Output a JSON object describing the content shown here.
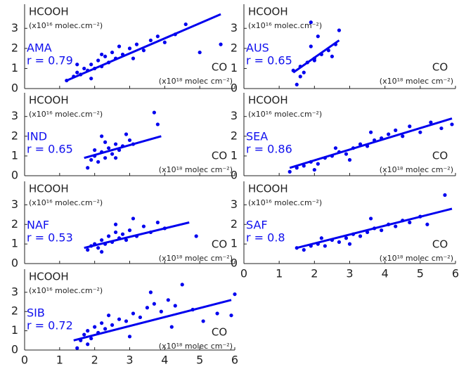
{
  "chart_data": [
    {
      "type": "scatter",
      "y_label": "HCOOH",
      "y_unit": "(x10¹⁶ molec.cm⁻²)",
      "x_label": "CO",
      "x_unit": "(x10¹⁸ molec cm⁻²)",
      "region": "AMA",
      "r_label": "r = 0.79",
      "color": "#0000ee",
      "xlim": [
        0,
        6
      ],
      "ylim": [
        0,
        4.2
      ],
      "yticks": [
        0,
        1,
        2,
        3
      ],
      "xticks": [
        0,
        1,
        2,
        3,
        4,
        5,
        6
      ],
      "xtick_labels": false,
      "x": [
        1.2,
        1.4,
        1.5,
        1.6,
        1.7,
        1.8,
        1.9,
        2.0,
        2.1,
        2.2,
        2.3,
        2.4,
        2.5,
        2.6,
        2.8,
        3.0,
        3.2,
        3.4,
        3.6,
        3.8,
        4.0,
        4.3,
        4.6,
        5.0,
        5.6,
        1.5,
        1.9,
        2.2,
        2.7,
        3.1
      ],
      "y": [
        0.4,
        0.6,
        0.8,
        0.7,
        1.0,
        0.9,
        1.2,
        1.0,
        1.4,
        1.1,
        1.6,
        1.3,
        1.8,
        1.5,
        1.7,
        2.0,
        2.2,
        1.9,
        2.4,
        2.6,
        2.3,
        2.7,
        3.2,
        1.8,
        2.2,
        1.2,
        0.5,
        1.7,
        2.1,
        1.5
      ],
      "fit_x": [
        1.2,
        5.6
      ],
      "fit_y": [
        0.4,
        3.7
      ]
    },
    {
      "type": "scatter",
      "y_label": "HCOOH",
      "y_unit": "(x10¹⁶ molec.cm⁻²)",
      "x_label": "CO",
      "x_unit": "(x10¹⁸ molec cm⁻²)",
      "region": "AUS",
      "r_label": "r = 0.65",
      "color": "#0000ee",
      "xlim": [
        0,
        6
      ],
      "ylim": [
        0,
        4.2
      ],
      "yticks": [
        0,
        1,
        2,
        3
      ],
      "xticks": [
        0,
        1,
        2,
        3,
        4,
        5,
        6
      ],
      "xtick_labels": false,
      "x": [
        1.4,
        1.5,
        1.6,
        1.7,
        1.8,
        1.9,
        2.0,
        2.1,
        2.2,
        2.4,
        2.5,
        2.6,
        2.7,
        1.9,
        2.0,
        1.6
      ],
      "y": [
        0.9,
        0.2,
        1.1,
        0.8,
        1.3,
        3.3,
        1.5,
        2.6,
        1.7,
        1.9,
        1.6,
        2.2,
        2.9,
        2.1,
        1.4,
        0.6
      ],
      "fit_x": [
        1.4,
        2.7
      ],
      "fit_y": [
        0.8,
        2.4
      ]
    },
    {
      "type": "scatter",
      "y_label": "HCOOH",
      "y_unit": "(x10¹⁶ molec.cm⁻²)",
      "x_label": "CO",
      "x_unit": "(x10¹⁸ molec cm⁻²)",
      "region": "IND",
      "r_label": "r = 0.65",
      "color": "#0000ee",
      "xlim": [
        0,
        6
      ],
      "ylim": [
        0,
        4.2
      ],
      "yticks": [
        0,
        1,
        2,
        3
      ],
      "xticks": [
        0,
        1,
        2,
        3,
        4,
        5,
        6
      ],
      "xtick_labels": false,
      "x": [
        1.8,
        1.9,
        2.0,
        2.1,
        2.2,
        2.3,
        2.4,
        2.5,
        2.6,
        2.7,
        2.8,
        2.9,
        3.0,
        3.1,
        3.7,
        3.8,
        2.0,
        2.3,
        2.6,
        2.2
      ],
      "y": [
        0.4,
        0.8,
        1.0,
        0.7,
        1.2,
        0.9,
        1.4,
        1.1,
        1.6,
        1.3,
        1.5,
        2.1,
        1.8,
        1.6,
        3.2,
        2.6,
        1.3,
        1.7,
        0.9,
        2.0
      ],
      "fit_x": [
        1.7,
        3.9
      ],
      "fit_y": [
        0.9,
        2.0
      ]
    },
    {
      "type": "scatter",
      "y_label": "HCOOH",
      "y_unit": "(x10¹⁶ molec.cm⁻²)",
      "x_label": "CO",
      "x_unit": "(x10¹⁸ molec cm⁻²)",
      "region": "SEA",
      "r_label": "r = 0.86",
      "color": "#0000ee",
      "xlim": [
        0,
        6
      ],
      "ylim": [
        0,
        4.2
      ],
      "yticks": [
        0,
        1,
        2,
        3
      ],
      "xticks": [
        0,
        1,
        2,
        3,
        4,
        5,
        6
      ],
      "xtick_labels": false,
      "x": [
        1.3,
        1.5,
        1.7,
        1.9,
        2.1,
        2.3,
        2.5,
        2.7,
        2.9,
        3.1,
        3.3,
        3.5,
        3.7,
        3.9,
        4.1,
        4.3,
        4.5,
        4.7,
        5.0,
        5.3,
        5.6,
        5.9,
        2.0,
        2.6,
        3.0,
        3.6
      ],
      "y": [
        0.2,
        0.4,
        0.5,
        0.7,
        0.6,
        0.9,
        1.0,
        1.2,
        1.1,
        1.4,
        1.6,
        1.5,
        1.8,
        1.9,
        2.1,
        2.3,
        2.0,
        2.5,
        2.2,
        2.7,
        2.4,
        2.6,
        0.3,
        1.4,
        0.8,
        2.2
      ],
      "fit_x": [
        1.3,
        5.9
      ],
      "fit_y": [
        0.4,
        2.9
      ]
    },
    {
      "type": "scatter",
      "y_label": "HCOOH",
      "y_unit": "(x10¹⁶ molec.cm⁻²)",
      "x_label": "CO",
      "x_unit": "(x10¹⁸ molec cm⁻²)",
      "region": "NAF",
      "r_label": "r = 0.53",
      "color": "#0000ee",
      "xlim": [
        0,
        6
      ],
      "ylim": [
        0,
        4.2
      ],
      "yticks": [
        0,
        1,
        2,
        3
      ],
      "xticks": [
        0,
        1,
        2,
        3,
        4,
        5,
        6
      ],
      "xtick_labels": false,
      "x": [
        1.8,
        1.9,
        2.0,
        2.1,
        2.2,
        2.3,
        2.4,
        2.5,
        2.6,
        2.7,
        2.8,
        2.9,
        3.0,
        3.2,
        3.4,
        3.6,
        3.8,
        4.0,
        4.9,
        2.2,
        2.6,
        3.1
      ],
      "y": [
        0.7,
        0.9,
        1.0,
        0.8,
        1.2,
        1.0,
        1.4,
        1.1,
        1.6,
        1.3,
        1.5,
        1.2,
        1.7,
        1.4,
        1.9,
        1.6,
        2.1,
        1.8,
        1.4,
        0.6,
        2.0,
        2.3
      ],
      "fit_x": [
        1.7,
        4.7
      ],
      "fit_y": [
        0.8,
        2.1
      ]
    },
    {
      "type": "scatter",
      "y_label": "HCOOH",
      "y_unit": "(x10¹⁶ molec.cm⁻²)",
      "x_label": "CO",
      "x_unit": "(x10¹⁸ molec cm⁻²)",
      "region": "SAF",
      "r_label": "r = 0.8",
      "color": "#0000ee",
      "xlim": [
        0,
        6
      ],
      "ylim": [
        0,
        4.2
      ],
      "yticks": [
        0,
        1,
        2,
        3
      ],
      "xticks": [
        0,
        1,
        2,
        3,
        4,
        5,
        6
      ],
      "xtick_labels": true,
      "x": [
        1.5,
        1.7,
        1.9,
        2.1,
        2.3,
        2.5,
        2.7,
        2.9,
        3.1,
        3.3,
        3.5,
        3.7,
        3.9,
        4.1,
        4.3,
        4.5,
        4.7,
        5.0,
        5.2,
        5.7,
        2.2,
        3.0,
        3.6
      ],
      "y": [
        0.8,
        0.7,
        0.9,
        1.0,
        0.9,
        1.2,
        1.1,
        1.3,
        1.5,
        1.4,
        1.6,
        1.8,
        1.7,
        2.0,
        1.9,
        2.2,
        2.1,
        2.4,
        2.0,
        3.5,
        1.3,
        1.0,
        2.3
      ],
      "fit_x": [
        1.5,
        5.9
      ],
      "fit_y": [
        0.8,
        2.8
      ]
    },
    {
      "type": "scatter",
      "y_label": "HCOOH",
      "y_unit": "(x10¹⁶ molec.cm⁻²)",
      "x_label": "CO",
      "x_unit": "(x10¹⁸ molec cm⁻²)",
      "region": "SIB",
      "r_label": "r = 0.72",
      "color": "#0000ee",
      "xlim": [
        0,
        6
      ],
      "ylim": [
        0,
        4.2
      ],
      "yticks": [
        0,
        1,
        2,
        3
      ],
      "xticks": [
        0,
        1,
        2,
        3,
        4,
        5,
        6
      ],
      "xtick_labels": true,
      "x": [
        1.5,
        1.6,
        1.7,
        1.8,
        1.9,
        2.0,
        2.1,
        2.2,
        2.3,
        2.5,
        2.7,
        2.9,
        3.1,
        3.3,
        3.5,
        3.7,
        3.9,
        4.1,
        4.3,
        4.5,
        4.8,
        5.1,
        5.5,
        5.9,
        6.0,
        1.8,
        2.4,
        3.0,
        3.6,
        4.2
      ],
      "y": [
        0.1,
        0.5,
        0.8,
        1.0,
        0.6,
        1.2,
        0.9,
        1.4,
        1.1,
        1.3,
        1.6,
        1.5,
        1.9,
        1.7,
        2.2,
        2.4,
        2.0,
        2.6,
        2.3,
        3.4,
        2.1,
        1.5,
        1.9,
        1.8,
        2.9,
        0.3,
        1.8,
        0.7,
        3.0,
        1.2
      ],
      "fit_x": [
        1.4,
        5.9
      ],
      "fit_y": [
        0.5,
        2.6
      ]
    }
  ]
}
